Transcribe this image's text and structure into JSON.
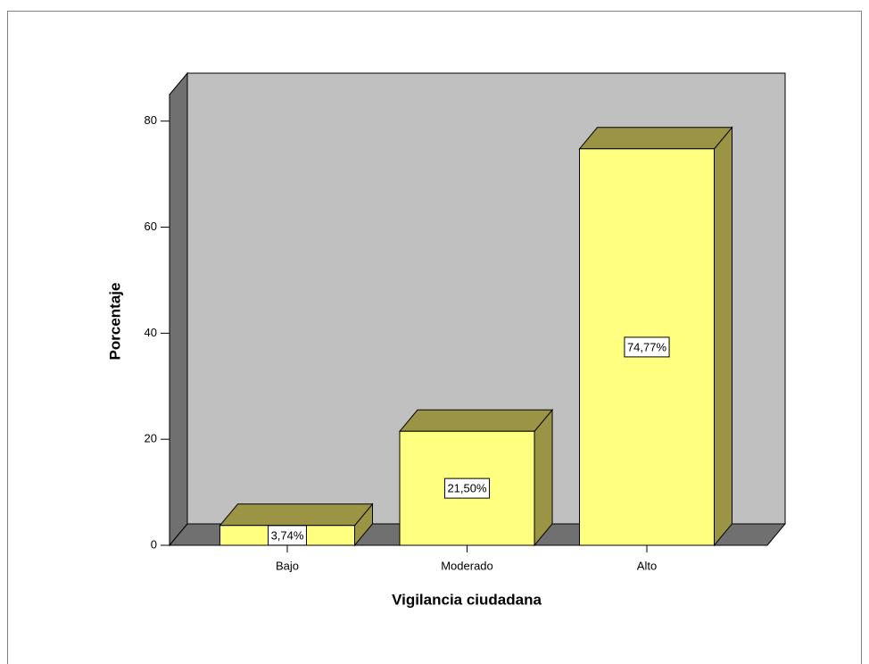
{
  "chart_data": {
    "type": "bar3d",
    "categories": [
      "Bajo",
      "Moderado",
      "Alto"
    ],
    "values": [
      3.74,
      21.5,
      74.77
    ],
    "value_labels": [
      "3,74%",
      "21,50%",
      "74,77%"
    ],
    "color": "#ffff80",
    "xlabel": "Vigilancia ciudadana",
    "ylabel": "Porcentaje",
    "ylim": [
      0,
      85
    ],
    "yticks": [
      0,
      20,
      40,
      60,
      80
    ]
  }
}
